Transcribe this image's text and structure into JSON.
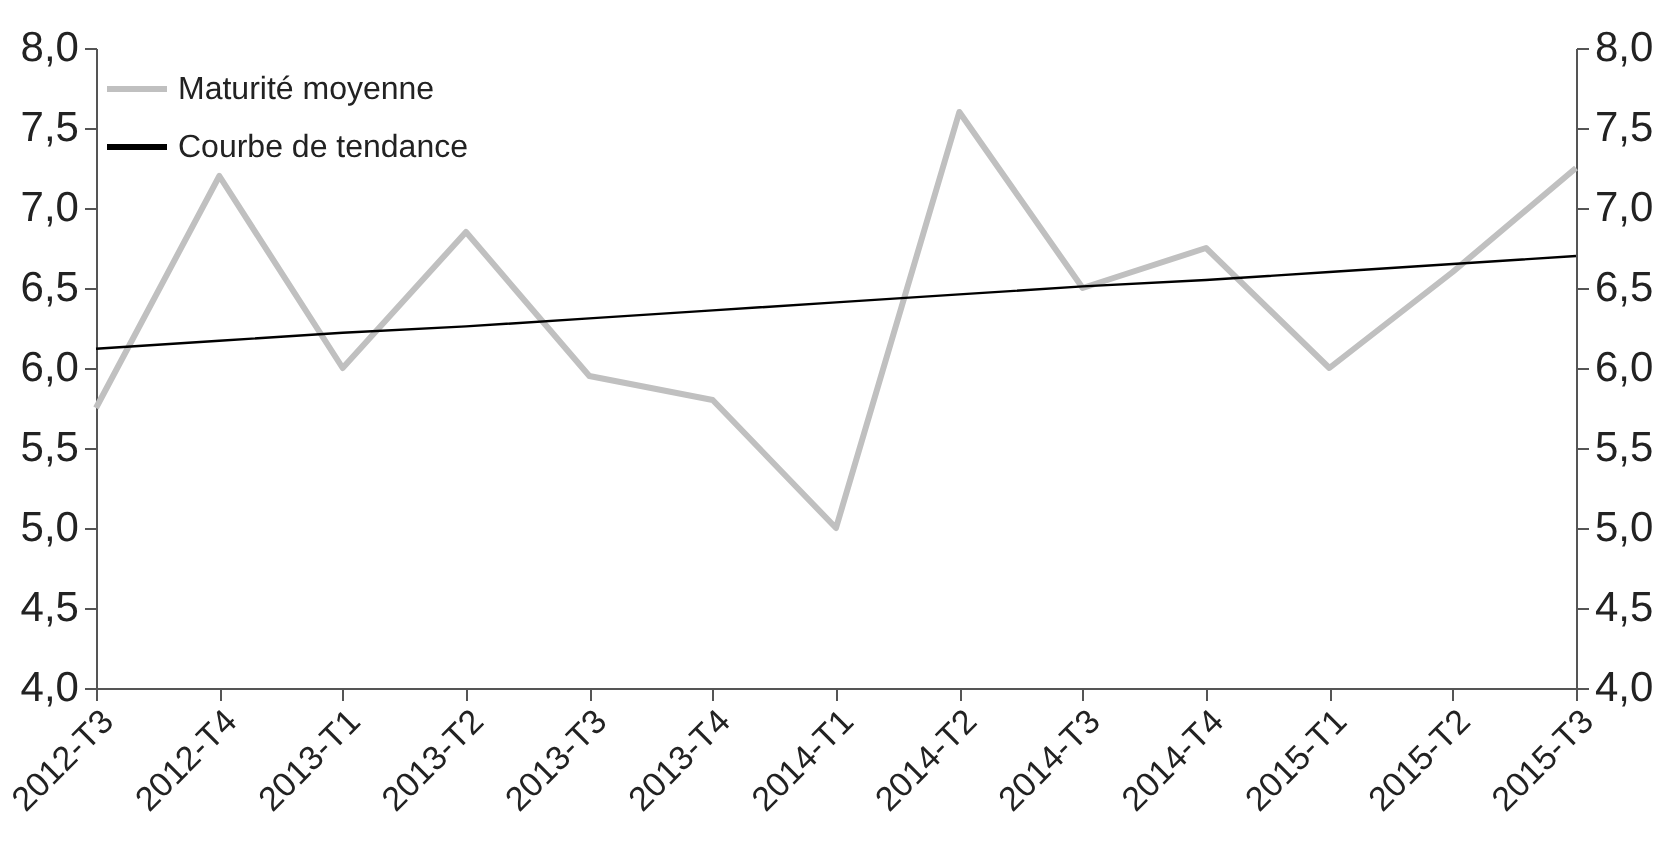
{
  "chart_data": {
    "type": "line",
    "categories": [
      "2012-T3",
      "2012-T4",
      "2013-T1",
      "2013-T2",
      "2013-T3",
      "2013-T4",
      "2014-T1",
      "2014-T2",
      "2014-T3",
      "2014-T4",
      "2015-T1",
      "2015-T2",
      "2015-T3"
    ],
    "series": [
      {
        "name": "Maturité moyenne",
        "color": "#c0c0c0",
        "values": [
          5.75,
          7.2,
          6.0,
          6.85,
          5.95,
          5.8,
          5.0,
          7.6,
          6.5,
          6.75,
          6.0,
          6.6,
          7.25
        ]
      },
      {
        "name": "Courbe de tendance",
        "color": "#000000",
        "axis": "y2",
        "values": [
          6.12,
          6.17,
          6.22,
          6.26,
          6.31,
          6.36,
          6.41,
          6.46,
          6.51,
          6.55,
          6.6,
          6.65,
          6.7
        ]
      }
    ],
    "ylim": [
      4,
      8
    ],
    "yticks": [
      {
        "value": 4,
        "label": "4,0"
      },
      {
        "value": 4.5,
        "label": "4,5"
      },
      {
        "value": 5,
        "label": "5,0"
      },
      {
        "value": 5.5,
        "label": "5,5"
      },
      {
        "value": 6,
        "label": "6,0"
      },
      {
        "value": 6.5,
        "label": "6,5"
      },
      {
        "value": 7,
        "label": "7,0"
      },
      {
        "value": 7.5,
        "label": "7,5"
      },
      {
        "value": 8,
        "label": "8,0"
      }
    ],
    "y2lim": [
      4,
      8
    ],
    "y2ticks": [
      {
        "value": 4,
        "label": "4,0"
      },
      {
        "value": 4.5,
        "label": "4,5"
      },
      {
        "value": 5,
        "label": "5,0"
      },
      {
        "value": 5.5,
        "label": "5,5"
      },
      {
        "value": 6,
        "label": "6,0"
      },
      {
        "value": 6.5,
        "label": "6,5"
      },
      {
        "value": 7,
        "label": "7,0"
      },
      {
        "value": 7.5,
        "label": "7,5"
      },
      {
        "value": 8,
        "label": "8,0"
      }
    ],
    "grid": false,
    "legend": "top left",
    "marker": "none",
    "line_style": "solid"
  }
}
